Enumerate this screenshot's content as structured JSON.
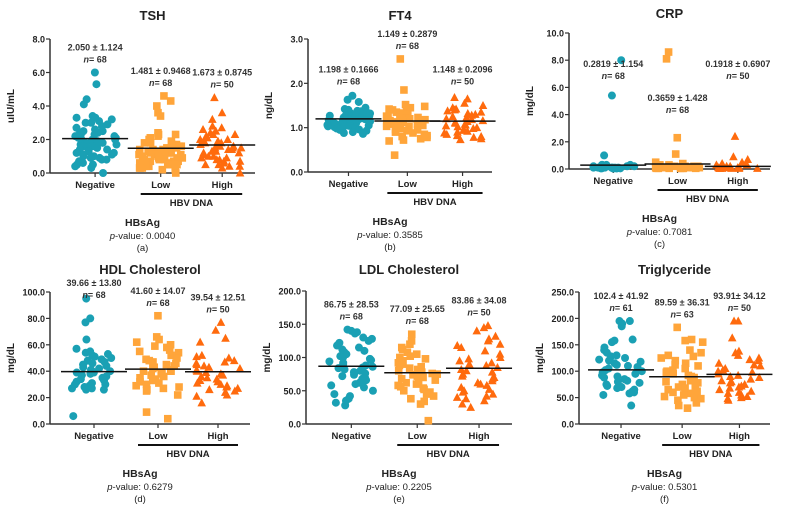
{
  "colors": {
    "negative": "#1aa0b4",
    "low": "#ffa53a",
    "high": "#ff6a0d",
    "axis": "#333333",
    "text": "#222222"
  },
  "chart_data": [
    {
      "type": "scatter",
      "panel_label": "(a)",
      "title": "TSH",
      "ylabel": "uIU/mL",
      "ylim": [
        0,
        8
      ],
      "yticks": [
        "0.0",
        "2.0",
        "4.0",
        "6.0",
        "8.0"
      ],
      "ytick_values": [
        0,
        2,
        4,
        6,
        8
      ],
      "categories": [
        "Negative",
        "Low",
        "High"
      ],
      "group_label": "HBV DNA",
      "xlabel": "HBsAg",
      "p_label": "p",
      "p_value": "-value: 0.0040",
      "series": [
        {
          "name": "Negative",
          "marker": "circle",
          "mean": 2.05,
          "annotation": "2.050 ± 1.124",
          "n_label": "= 68",
          "values": [
            6.0,
            5.3,
            4.4,
            4.1,
            3.4,
            3.3,
            3.3,
            3.2,
            3.1,
            3.0,
            3.0,
            2.9,
            2.8,
            2.7,
            2.6,
            2.5,
            2.5,
            2.4,
            2.4,
            2.3,
            2.3,
            2.2,
            2.2,
            2.1,
            2.1,
            2.0,
            2.0,
            2.0,
            1.9,
            1.9,
            1.8,
            1.8,
            1.7,
            1.7,
            1.6,
            1.6,
            1.5,
            1.5,
            1.4,
            1.4,
            1.3,
            1.3,
            1.2,
            1.2,
            1.1,
            1.1,
            1.0,
            1.0,
            0.9,
            0.9,
            0.8,
            0.8,
            0.7,
            0.6,
            0.5,
            0.5,
            0.4,
            0.3,
            0.0
          ]
        },
        {
          "name": "Low",
          "marker": "square",
          "mean": 1.481,
          "annotation": "1.481 ± 0.9468",
          "n_label": "= 68",
          "values": [
            4.6,
            4.3,
            4.0,
            3.6,
            3.4,
            2.4,
            2.3,
            2.3,
            2.2,
            2.1,
            2.0,
            1.9,
            1.8,
            1.8,
            1.7,
            1.7,
            1.6,
            1.6,
            1.5,
            1.5,
            1.5,
            1.4,
            1.4,
            1.4,
            1.3,
            1.3,
            1.3,
            1.2,
            1.2,
            1.2,
            1.1,
            1.1,
            1.1,
            1.0,
            1.0,
            1.0,
            0.9,
            0.9,
            0.9,
            0.8,
            0.8,
            0.8,
            0.7,
            0.7,
            0.7,
            0.6,
            0.6,
            0.6,
            0.5,
            0.5,
            0.5,
            0.4,
            0.4,
            0.4,
            0.3,
            0.3,
            0.3,
            0.2,
            0.2,
            0.0
          ]
        },
        {
          "name": "High",
          "marker": "triangle",
          "mean": 1.673,
          "annotation": "1.673 ± 0.8745",
          "n_label": "= 50",
          "values": [
            4.5,
            3.6,
            3.2,
            2.8,
            2.7,
            2.6,
            2.5,
            2.4,
            2.3,
            2.3,
            2.2,
            2.1,
            2.0,
            2.0,
            1.9,
            1.9,
            1.8,
            1.8,
            1.7,
            1.7,
            1.6,
            1.6,
            1.5,
            1.5,
            1.5,
            1.4,
            1.4,
            1.3,
            1.3,
            1.2,
            1.2,
            1.1,
            1.1,
            1.0,
            1.0,
            0.9,
            0.9,
            0.8,
            0.8,
            0.7,
            0.7,
            0.6,
            0.5,
            0.5,
            0.4,
            0.4,
            0.3,
            0.0
          ]
        }
      ]
    },
    {
      "type": "scatter",
      "panel_label": "(b)",
      "title": "FT4",
      "ylabel": "ng/dL",
      "ylim": [
        0,
        3
      ],
      "yticks": [
        "0.0",
        "1.0",
        "2.0",
        "3.0"
      ],
      "ytick_values": [
        0,
        1,
        2,
        3
      ],
      "categories": [
        "Negative",
        "Low",
        "High"
      ],
      "group_label": "HBV DNA",
      "xlabel": "HBsAg",
      "p_label": "p",
      "p_value": "-value: 0.3585",
      "series": [
        {
          "name": "Negative",
          "marker": "circle",
          "mean": 1.198,
          "annotation": "1.198 ± 0.1666",
          "n_label": "= 68",
          "values": [
            1.72,
            1.63,
            1.58,
            1.45,
            1.42,
            1.4,
            1.38,
            1.37,
            1.35,
            1.33,
            1.32,
            1.3,
            1.29,
            1.28,
            1.27,
            1.26,
            1.25,
            1.24,
            1.23,
            1.22,
            1.21,
            1.2,
            1.2,
            1.19,
            1.18,
            1.17,
            1.16,
            1.15,
            1.14,
            1.13,
            1.12,
            1.11,
            1.1,
            1.09,
            1.08,
            1.07,
            1.06,
            1.05,
            1.04,
            1.03,
            1.02,
            1.01,
            1.0,
            0.98,
            0.96,
            0.95,
            0.93,
            0.9,
            0.88,
            0.86
          ]
        },
        {
          "name": "Low",
          "marker": "square",
          "mean": 1.149,
          "annotation": "1.149 ± 0.2879",
          "n_label": "= 68",
          "values": [
            2.55,
            1.85,
            1.52,
            1.48,
            1.45,
            1.42,
            1.4,
            1.38,
            1.35,
            1.33,
            1.3,
            1.28,
            1.26,
            1.25,
            1.23,
            1.21,
            1.2,
            1.18,
            1.16,
            1.15,
            1.13,
            1.12,
            1.1,
            1.08,
            1.07,
            1.05,
            1.03,
            1.02,
            1.0,
            0.98,
            0.96,
            0.95,
            0.93,
            0.9,
            0.88,
            0.85,
            0.82,
            0.8,
            0.78,
            0.75,
            0.72,
            0.7,
            0.38
          ]
        },
        {
          "name": "High",
          "marker": "triangle",
          "mean": 1.148,
          "annotation": "1.148 ± 0.2096",
          "n_label": "= 50",
          "values": [
            1.68,
            1.65,
            1.55,
            1.5,
            1.45,
            1.42,
            1.4,
            1.38,
            1.35,
            1.32,
            1.3,
            1.28,
            1.25,
            1.22,
            1.2,
            1.18,
            1.16,
            1.14,
            1.12,
            1.1,
            1.08,
            1.06,
            1.04,
            1.02,
            1.0,
            0.98,
            0.96,
            0.94,
            0.92,
            0.9,
            0.88,
            0.85,
            0.82,
            0.8,
            0.78,
            0.75,
            0.73
          ]
        }
      ]
    },
    {
      "type": "scatter",
      "panel_label": "(c)",
      "title": "CRP",
      "ylabel": "mg/dL",
      "ylim": [
        0,
        10
      ],
      "yticks": [
        "0.0",
        "2.0",
        "4.0",
        "6.0",
        "8.0",
        "10.0"
      ],
      "ytick_values": [
        0,
        2,
        4,
        6,
        8,
        10
      ],
      "categories": [
        "Negative",
        "Low",
        "High"
      ],
      "group_label": "HBV DNA",
      "xlabel": "HBsAg",
      "p_label": "p",
      "p_value": "-value: 0.7081",
      "series": [
        {
          "name": "Negative",
          "marker": "circle",
          "mean": 0.2819,
          "annotation": "0.2819 ± 1.154",
          "n_label": "= 68",
          "values": [
            8.0,
            5.4,
            1.0,
            0.3,
            0.3,
            0.3,
            0.3,
            0.2,
            0.2,
            0.2,
            0.2,
            0.2,
            0.1,
            0.1,
            0.1,
            0.1,
            0.1,
            0.1,
            0.1,
            0.05,
            0.05,
            0.05,
            0.05,
            0.05,
            0.05,
            0.05
          ]
        },
        {
          "name": "Low",
          "marker": "square",
          "mean": 0.3659,
          "annotation": "0.3659 ± 1.428",
          "n_label": "= 68",
          "values": [
            8.6,
            8.1,
            2.3,
            1.1,
            0.5,
            0.4,
            0.3,
            0.3,
            0.3,
            0.2,
            0.2,
            0.2,
            0.2,
            0.1,
            0.1,
            0.1,
            0.1,
            0.1,
            0.1,
            0.05,
            0.05,
            0.05,
            0.05,
            0.05,
            0.05,
            0.05
          ]
        },
        {
          "name": "High",
          "marker": "triangle",
          "mean": 0.1918,
          "annotation": "0.1918 ± 0.6907",
          "n_label": "= 50",
          "values": [
            2.4,
            0.9,
            0.7,
            0.5,
            0.4,
            0.4,
            0.3,
            0.3,
            0.2,
            0.2,
            0.2,
            0.1,
            0.1,
            0.1,
            0.1,
            0.05,
            0.05,
            0.05,
            0.05,
            0.05,
            0.05
          ]
        }
      ]
    },
    {
      "type": "scatter",
      "panel_label": "(d)",
      "title": "HDL Cholesterol",
      "ylabel": "mg/dL",
      "ylim": [
        0,
        100
      ],
      "yticks": [
        "0.0",
        "20.0",
        "40.0",
        "60.0",
        "80.0",
        "100.0"
      ],
      "ytick_values": [
        0,
        20,
        40,
        60,
        80,
        100
      ],
      "categories": [
        "Negative",
        "Low",
        "High"
      ],
      "group_label": "HBV DNA",
      "xlabel": "HBsAg",
      "p_label": "p",
      "p_value": "-value: 0.6279",
      "series": [
        {
          "name": "Negative",
          "marker": "circle",
          "mean": 39.66,
          "annotation": "39.66 ± 13.80",
          "n_label": "= 68",
          "values": [
            95,
            80,
            77,
            64,
            57,
            55,
            54,
            53,
            52,
            51,
            50,
            49,
            48,
            47,
            46,
            45,
            44,
            43,
            42,
            41,
            40,
            40,
            39,
            39,
            38,
            37,
            36,
            35,
            34,
            33,
            32,
            31,
            30,
            30,
            29,
            28,
            27,
            27,
            26,
            26,
            6
          ]
        },
        {
          "name": "Low",
          "marker": "square",
          "mean": 41.6,
          "annotation": "41.60 ± 14.07",
          "n_label": "= 68",
          "values": [
            82,
            66,
            64,
            62,
            60,
            59,
            58,
            56,
            55,
            54,
            52,
            50,
            49,
            48,
            47,
            46,
            45,
            44,
            43,
            42,
            41,
            40,
            40,
            39,
            38,
            37,
            36,
            35,
            34,
            33,
            32,
            31,
            30,
            29,
            28,
            27,
            26,
            25,
            22,
            9,
            4
          ]
        },
        {
          "name": "High",
          "marker": "triangle",
          "mean": 39.54,
          "annotation": "39.54 ± 12.51",
          "n_label": "= 50",
          "values": [
            77,
            71,
            65,
            62,
            52,
            51,
            50,
            48,
            47,
            46,
            45,
            44,
            43,
            42,
            41,
            40,
            39,
            38,
            37,
            36,
            35,
            34,
            33,
            32,
            31,
            30,
            29,
            28,
            27,
            26,
            25,
            24,
            22,
            21,
            16
          ]
        }
      ]
    },
    {
      "type": "scatter",
      "panel_label": "(e)",
      "title": "LDL Cholesterol",
      "ylabel": "mg/dL",
      "ylim": [
        0,
        200
      ],
      "yticks": [
        "0.0",
        "50.0",
        "100.0",
        "150.0",
        "200.0"
      ],
      "ytick_values": [
        0,
        50,
        100,
        150,
        200
      ],
      "categories": [
        "Negative",
        "Low",
        "High"
      ],
      "group_label": "HBV DNA",
      "xlabel": "HBsAg",
      "p_label": "p",
      "p_value": "-value: 0.2205",
      "series": [
        {
          "name": "Negative",
          "marker": "circle",
          "mean": 86.75,
          "annotation": "86.75 ± 28.53",
          "n_label": "= 68",
          "values": [
            142,
            140,
            138,
            136,
            130,
            128,
            125,
            122,
            118,
            115,
            112,
            110,
            108,
            105,
            102,
            100,
            98,
            96,
            94,
            92,
            90,
            88,
            86,
            85,
            84,
            82,
            80,
            78,
            76,
            74,
            72,
            70,
            68,
            66,
            64,
            62,
            60,
            58,
            55,
            50,
            45,
            42,
            38,
            35,
            32,
            28
          ]
        },
        {
          "name": "Low",
          "marker": "square",
          "mean": 77.09,
          "annotation": "77.09 ± 25.65",
          "n_label": "= 68",
          "values": [
            135,
            125,
            120,
            115,
            112,
            108,
            105,
            102,
            100,
            98,
            95,
            92,
            90,
            88,
            86,
            84,
            82,
            80,
            78,
            76,
            75,
            74,
            72,
            70,
            68,
            66,
            64,
            62,
            60,
            58,
            56,
            54,
            52,
            50,
            48,
            45,
            42,
            38,
            34,
            30,
            5
          ]
        },
        {
          "name": "High",
          "marker": "triangle",
          "mean": 83.86,
          "annotation": "83.86 ± 34.08",
          "n_label": "= 50",
          "values": [
            148,
            145,
            140,
            132,
            128,
            125,
            120,
            118,
            115,
            110,
            105,
            100,
            98,
            95,
            92,
            90,
            88,
            85,
            82,
            80,
            78,
            75,
            72,
            70,
            68,
            65,
            62,
            60,
            58,
            55,
            52,
            50,
            48,
            45,
            42,
            40,
            38,
            35,
            30,
            25
          ]
        }
      ]
    },
    {
      "type": "scatter",
      "panel_label": "(f)",
      "title": "Triglyceride",
      "ylabel": "mg/dL",
      "ylim": [
        0,
        250
      ],
      "yticks": [
        "0.0",
        "50.0",
        "100.0",
        "150.0",
        "200.0",
        "250.0"
      ],
      "ytick_values": [
        0,
        50,
        100,
        150,
        200,
        250
      ],
      "categories": [
        "Negative",
        "Low",
        "High"
      ],
      "group_label": "HBV DNA",
      "xlabel": "HBsAg",
      "p_label": "p",
      "p_value": "-value: 0.5301",
      "series": [
        {
          "name": "Negative",
          "marker": "circle",
          "mean": 102.4,
          "annotation": "102.4 ± 41.92",
          "n_label": "= 61",
          "values": [
            195,
            195,
            190,
            185,
            160,
            158,
            155,
            145,
            140,
            135,
            130,
            128,
            125,
            122,
            120,
            118,
            115,
            112,
            110,
            108,
            105,
            102,
            100,
            98,
            95,
            92,
            90,
            88,
            85,
            82,
            80,
            78,
            75,
            72,
            70,
            68,
            65,
            62,
            60,
            58,
            55,
            35
          ]
        },
        {
          "name": "Low",
          "marker": "square",
          "mean": 89.59,
          "annotation": "89.59 ± 36.31",
          "n_label": "= 63",
          "values": [
            183,
            160,
            158,
            155,
            140,
            135,
            130,
            128,
            125,
            120,
            115,
            112,
            110,
            105,
            102,
            100,
            98,
            95,
            92,
            90,
            88,
            85,
            82,
            80,
            78,
            75,
            72,
            70,
            68,
            65,
            62,
            60,
            58,
            55,
            52,
            50,
            48,
            45,
            40,
            35,
            30
          ]
        },
        {
          "name": "High",
          "marker": "triangle",
          "mean": 93.91,
          "annotation": "93.91± 34.12",
          "n_label": "= 50",
          "values": [
            195,
            195,
            163,
            138,
            135,
            130,
            125,
            122,
            120,
            115,
            112,
            110,
            105,
            102,
            100,
            98,
            95,
            92,
            90,
            88,
            85,
            82,
            80,
            78,
            75,
            72,
            70,
            68,
            65,
            62,
            60,
            58,
            55,
            52,
            50,
            48,
            45
          ]
        }
      ]
    }
  ]
}
